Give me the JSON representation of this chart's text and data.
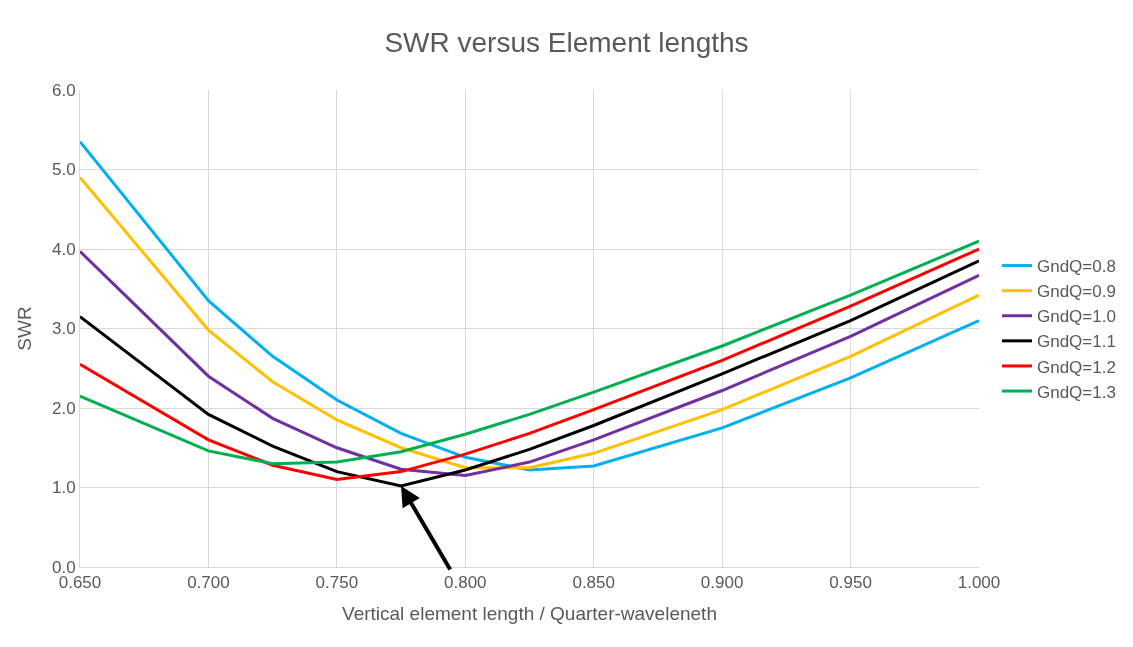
{
  "chart_data": {
    "type": "line",
    "title": "SWR versus Element lengths",
    "xlabel": "Vertical element length / Quarter-waveleneth",
    "ylabel": "SWR",
    "x": [
      0.65,
      0.7,
      0.725,
      0.75,
      0.775,
      0.8,
      0.825,
      0.85,
      0.9,
      0.95,
      1.0
    ],
    "series": [
      {
        "name": "GndQ=0.8",
        "color": "#00b0f0",
        "values": [
          5.35,
          3.35,
          2.65,
          2.1,
          1.68,
          1.38,
          1.22,
          1.27,
          1.75,
          2.38,
          3.1
        ]
      },
      {
        "name": "GndQ=0.9",
        "color": "#ffc000",
        "values": [
          4.9,
          2.98,
          2.33,
          1.85,
          1.5,
          1.25,
          1.25,
          1.43,
          1.98,
          2.65,
          3.42
        ]
      },
      {
        "name": "GndQ=1.0",
        "color": "#7030a0",
        "values": [
          3.97,
          2.4,
          1.87,
          1.5,
          1.23,
          1.15,
          1.32,
          1.6,
          2.22,
          2.9,
          3.67
        ]
      },
      {
        "name": "GndQ=1.1",
        "color": "#000000",
        "values": [
          3.15,
          1.92,
          1.52,
          1.2,
          1.02,
          1.22,
          1.48,
          1.78,
          2.43,
          3.1,
          3.85
        ]
      },
      {
        "name": "GndQ=1.2",
        "color": "#ff0000",
        "values": [
          2.55,
          1.6,
          1.28,
          1.1,
          1.2,
          1.42,
          1.68,
          1.98,
          2.6,
          3.28,
          4.0
        ]
      },
      {
        "name": "GndQ=1.3",
        "color": "#00b050",
        "values": [
          2.15,
          1.46,
          1.3,
          1.32,
          1.45,
          1.67,
          1.92,
          2.2,
          2.78,
          3.42,
          4.1
        ]
      }
    ],
    "xlim": [
      0.65,
      1.0
    ],
    "xticks": [
      {
        "value": 0.65,
        "label": "0.650"
      },
      {
        "value": 0.7,
        "label": "0.700"
      },
      {
        "value": 0.75,
        "label": "0.750"
      },
      {
        "value": 0.8,
        "label": "0.800"
      },
      {
        "value": 0.85,
        "label": "0.850"
      },
      {
        "value": 0.9,
        "label": "0.900"
      },
      {
        "value": 0.95,
        "label": "0.950"
      },
      {
        "value": 1.0,
        "label": "1.000"
      }
    ],
    "ylim": [
      0,
      6
    ],
    "yticks": [
      {
        "value": 0,
        "label": "0.0"
      },
      {
        "value": 1,
        "label": "1.0"
      },
      {
        "value": 2,
        "label": "2.0"
      },
      {
        "value": 3,
        "label": "3.0"
      },
      {
        "value": 4,
        "label": "4.0"
      },
      {
        "value": 5,
        "label": "5.0"
      },
      {
        "value": 6,
        "label": "6.0"
      }
    ],
    "grid": true,
    "legend": "right",
    "marker": "none",
    "line_style": "solid"
  }
}
